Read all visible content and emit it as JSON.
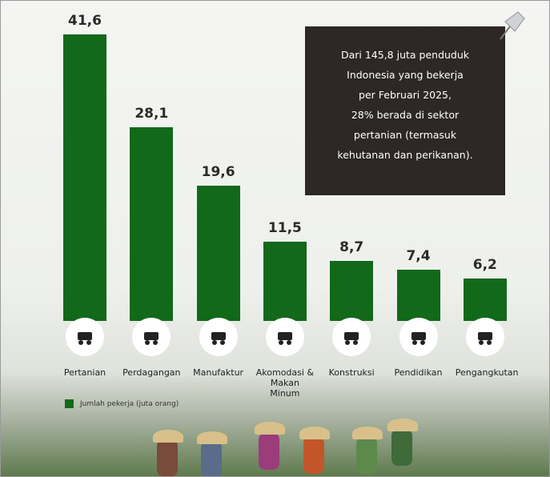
{
  "chart_data": {
    "type": "bar",
    "categories": [
      "Pertanian",
      "Perdagangan",
      "Manufaktur",
      "Akomodasi & Makan Minum",
      "Konstruksi",
      "Pendidikan",
      "Pengangkutan"
    ],
    "values": [
      41.6,
      28.1,
      19.6,
      11.5,
      8.7,
      7.4,
      6.2
    ],
    "value_labels": [
      "41,6",
      "28,1",
      "19,6",
      "11,5",
      "8,7",
      "7,4",
      "6,2"
    ],
    "color": "#12691a",
    "legend": "Jumlah pekerja (juta orang)",
    "annotation_lines": [
      "Dari 145,8 juta penduduk",
      "Indonesia yang bekerja",
      "per Februari 2025,",
      "28% berada di sektor",
      "pertanian (termasuk",
      "kehutanan dan perikanan)."
    ]
  }
}
